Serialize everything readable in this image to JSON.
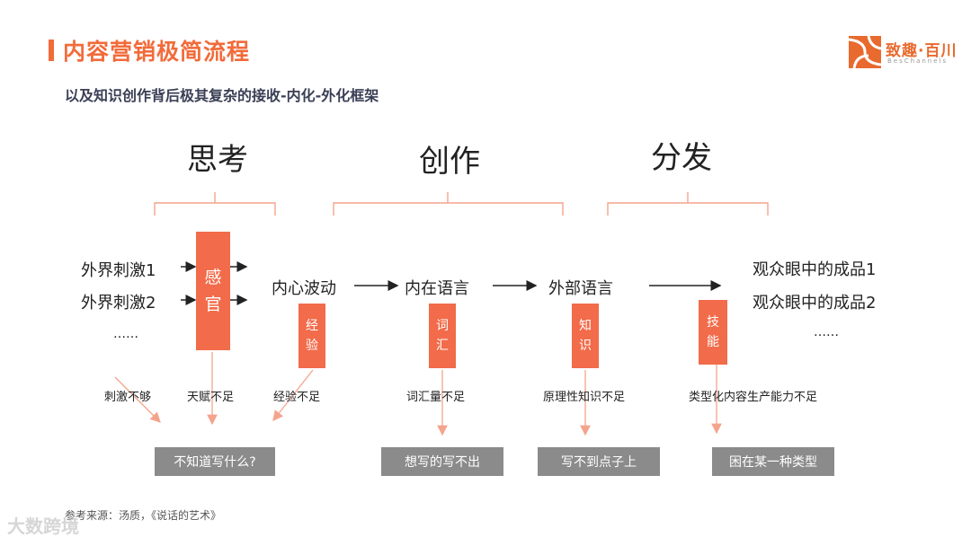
{
  "header": {
    "title": "内容营销极简流程",
    "subtitle": "以及知识创作背后极其复杂的接收-内化-外化框架"
  },
  "logo": {
    "name": "致趣·百川",
    "english": "BesChannels",
    "icon": "logo-icon"
  },
  "stages": {
    "think": "思考",
    "create": "创作",
    "distribute": "分发"
  },
  "nodes": {
    "stimulus1": "外界刺激1",
    "stimulus2": "外界刺激2",
    "stimulus_more": "……",
    "inner_fluctuation": "内心波动",
    "internal_language": "内在语言",
    "external_language": "外部语言",
    "product1": "观众眼中的成品1",
    "product2": "观众眼中的成品2",
    "product_more": "……"
  },
  "boxes": {
    "senses": [
      "感",
      "官"
    ],
    "experience": [
      "经",
      "验"
    ],
    "vocabulary": [
      "词",
      "汇"
    ],
    "knowledge": [
      "知",
      "识"
    ],
    "skill": [
      "技",
      "能"
    ]
  },
  "problems": {
    "stimulus_lack": "刺激不够",
    "talent_lack": "天赋不足",
    "experience_lack": "经验不足",
    "vocabulary_lack": "词汇量不足",
    "principle_lack": "原理性知识不足",
    "ability_lack": "类型化内容生产能力不足"
  },
  "results": {
    "dont_know": "不知道写什么?",
    "cant_write": "想写的写不出",
    "off_point": "写不到点子上",
    "stuck": "困在某一种类型"
  },
  "footer": {
    "source": "参考来源：汤质，《说话的艺术》",
    "watermark": "大数跨境"
  },
  "colors": {
    "accent": "#F26B3A",
    "box": "#F26B4A",
    "result": "#8b8b8b",
    "arrow_light": "#F4A48C"
  }
}
